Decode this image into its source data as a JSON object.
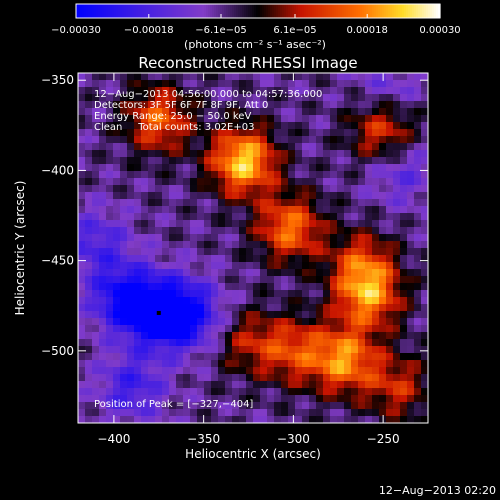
{
  "chart_data": {
    "type": "heatmap",
    "title": "Reconstructed RHESSI Image",
    "xlabel": "Heliocentric X (arcsec)",
    "ylabel": "Heliocentric Y (arcsec)",
    "xlim": [
      -420,
      -225
    ],
    "ylim": [
      -540,
      -346
    ],
    "x_ticks": [
      {
        "value": -400,
        "label": "−400"
      },
      {
        "value": -350,
        "label": "−350"
      },
      {
        "value": -300,
        "label": "−300"
      },
      {
        "value": -250,
        "label": "−250"
      }
    ],
    "y_ticks": [
      {
        "value": -350,
        "label": "−350"
      },
      {
        "value": -400,
        "label": "−400"
      },
      {
        "value": -450,
        "label": "−450"
      },
      {
        "value": -500,
        "label": "−500"
      }
    ],
    "colorbar": {
      "range": [
        -0.0003,
        0.0003
      ],
      "tick_values": [
        -0.0003,
        -0.00018,
        -6.1e-05,
        6.1e-05,
        0.00018,
        0.0003
      ],
      "tick_labels": [
        "−0.00030",
        "−0.00018",
        "−6.1e−05",
        "6.1e−05",
        "0.00018",
        "0.00030"
      ],
      "unit_label": "(photons cm⁻² s⁻¹ asec⁻²)"
    },
    "info_lines": [
      "12−Aug−2013 04:56:00.000 to 04:57:36.000",
      "Detectors: 3F 5F 6F 7F 8F 9F, Att 0",
      "Energy Range: 25.0 − 50.0 keV",
      "Clean     Total counts: 3.02E+03"
    ],
    "peak_label": "Position of Peak = [−327,−404]",
    "peak": [
      -327,
      -404
    ],
    "min_marker": [
      -375,
      -479
    ],
    "bright_regions": [
      {
        "x": -328,
        "y": -395,
        "value": 0.0003
      },
      {
        "x": -375,
        "y": -372,
        "value": 0.0002
      },
      {
        "x": -250,
        "y": -378,
        "value": 0.00018
      },
      {
        "x": -302,
        "y": -432,
        "value": 0.00022
      },
      {
        "x": -262,
        "y": -452,
        "value": 0.00016
      },
      {
        "x": -258,
        "y": -470,
        "value": 0.00022
      },
      {
        "x": -272,
        "y": -505,
        "value": 0.00024
      },
      {
        "x": -300,
        "y": -500,
        "value": 0.00016
      },
      {
        "x": -325,
        "y": -495,
        "value": 0.00012
      },
      {
        "x": -242,
        "y": -520,
        "value": 0.00014
      }
    ],
    "dim_regions": [
      {
        "x": -375,
        "y": -479,
        "value": -0.00028
      },
      {
        "x": -395,
        "y": -470,
        "value": -0.0002
      },
      {
        "x": -357,
        "y": -480,
        "value": -0.00018
      },
      {
        "x": -410,
        "y": -440,
        "value": -0.00012
      },
      {
        "x": -390,
        "y": -520,
        "value": -0.00014
      },
      {
        "x": -247,
        "y": -355,
        "value": -8e-05
      },
      {
        "x": -240,
        "y": -400,
        "value": -0.0001
      }
    ]
  },
  "footer": {
    "timestamp": "12−Aug−2013 02:20"
  }
}
